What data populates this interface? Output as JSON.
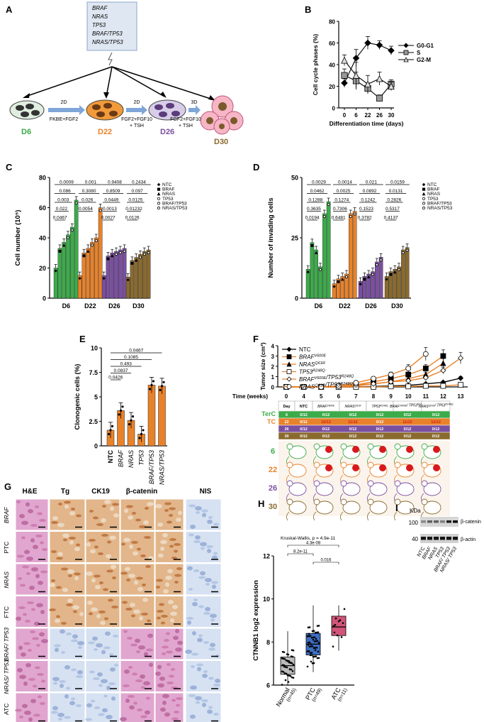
{
  "panels": {
    "A": "A",
    "B": "B",
    "C": "C",
    "D": "D",
    "E": "E",
    "F": "F",
    "G": "G",
    "H": "H",
    "I": "I"
  },
  "panel_a": {
    "genes": [
      "BRAF",
      "NRAS",
      "TP53",
      "BRAF/TP53",
      "NRAS/TP53"
    ],
    "stages": [
      {
        "day": "D6",
        "color": "#3cab4a"
      },
      {
        "day": "D22",
        "color": "#e8822a"
      },
      {
        "day": "D26",
        "color": "#7a4fa0"
      },
      {
        "day": "D30",
        "color": "#8a6a2e"
      }
    ],
    "steps": [
      {
        "top": "2D",
        "bottom": "FKBE+FGF2",
        "bottom2": ""
      },
      {
        "top": "2D",
        "bottom": "FGF2+FGF10",
        "bottom2": "+ TSH"
      },
      {
        "top": "3D",
        "bottom": "FGF2+FGF10",
        "bottom2": "+ TSH"
      }
    ]
  },
  "panel_c_legend": [
    "NTC",
    "BRAF",
    "NRAS",
    "TP53",
    "BRAF/TP53",
    "NRAS/TP53"
  ],
  "panel_d_legend": [
    "NTC",
    "BRAF",
    "NRAS",
    "TP53",
    "BRAF/TP53",
    "NRAS/TP53"
  ],
  "panel_c_pvalues": {
    "D6": [
      "0.0009",
      "0.086",
      "0.003",
      "0.022",
      "0.0467"
    ],
    "D22": [
      "0.001",
      "0.3080",
      "0.026",
      "0.0054"
    ],
    "D26": [
      "0.9408",
      "0.8509",
      "0.0449",
      "0.0013",
      "0.0027"
    ],
    "D30": [
      "0.2434",
      "0.097",
      "0.0125",
      "0.01232",
      "0.0126"
    ]
  },
  "panel_d_pvalues": {
    "D6": [
      "0.0029",
      "0.0462",
      "0.1288",
      "0.3635",
      "0.0194"
    ],
    "D22": [
      "0.0014",
      "0.0025",
      "0.1274",
      "0.7306",
      "0.6481"
    ],
    "D26": [
      "0.021",
      "0.0892",
      "0.1242",
      "0.1523",
      "0.3782"
    ],
    "D30": [
      "0.0159",
      "0.0131",
      "0.2826",
      "0.5317",
      "0.4137"
    ]
  },
  "panel_e_pvalues": [
    "0.0467",
    "0.1085",
    "0.493",
    "0.0837",
    "0.0426"
  ],
  "panel_f_legend": [
    "NTC",
    "BRAFV600E",
    "NRASQ61R",
    "TP53R248Q",
    "BRAFV600E/TP53R248Q",
    "NRASQ61R/TP53R248Q"
  ],
  "panel_f_table": {
    "header": [
      "Day",
      "NTC",
      "BRAFV600E",
      "NRASQ61R",
      "TP53R248Q",
      "BRAFV600E/ TP53R248Q",
      "NRASQ61R/ TP53R248Q"
    ],
    "rows": [
      {
        "day": "6",
        "color": "#3cab4a",
        "cells": [
          "0/12",
          "0/12",
          "0/12",
          "0/12",
          "0/12",
          "0/12"
        ]
      },
      {
        "day": "22",
        "color": "#e8822a",
        "cells": [
          "0/12",
          "10/12",
          "11/12",
          "0/12",
          "11/12",
          "12/12"
        ]
      },
      {
        "day": "26",
        "color": "#7a4fa0",
        "cells": [
          "0/12",
          "0/12",
          "0/12",
          "0/12",
          "0/12",
          "0/12"
        ]
      },
      {
        "day": "30",
        "color": "#8a6a2e",
        "cells": [
          "0/12",
          "0/12",
          "0/12",
          "0/12",
          "0/12",
          "0/12"
        ]
      }
    ],
    "terc": "TerC",
    "tc": "TC",
    "mice_days": [
      "6",
      "22",
      "26",
      "30"
    ]
  },
  "panel_g": {
    "columns": [
      "H&E",
      "Tg",
      "CK19",
      "β-catenin",
      "NIS"
    ],
    "rows": [
      "BRAF",
      "PTC",
      "NRAS",
      "FTC",
      "BRAF/ TP53",
      "NRAS/ TP53",
      "ATC"
    ]
  },
  "panel_h": {
    "title": "Kruskal-Wallis, p = 4.9e-11",
    "brackets": [
      "4.3e-08",
      "8.2e-11",
      "0.016"
    ]
  },
  "panel_i": {
    "kda": "KDa",
    "markers": [
      "100",
      "40"
    ],
    "bands": [
      "β-catenin",
      "β-actin"
    ],
    "lanes": [
      "NTC",
      "BRAF",
      "NRAS",
      "TP53",
      "BRAF/ TP53",
      "NRAS/ TP53"
    ]
  },
  "chart_data": [
    {
      "type": "line",
      "id": "B",
      "xlabel": "Differentiation time (days)",
      "ylabel": "Cell cycle phases (%)",
      "x": [
        0,
        6,
        22,
        26,
        30
      ],
      "xticks": [
        "0",
        "6",
        "22",
        "26",
        "30"
      ],
      "ylim": [
        0,
        80
      ],
      "yticks": [
        0,
        20,
        40,
        60,
        80
      ],
      "series": [
        {
          "name": "G0-G1",
          "marker": "diamond",
          "values": [
            23,
            46,
            60,
            58,
            53
          ],
          "errors": [
            4,
            8,
            6,
            4,
            4
          ]
        },
        {
          "name": "S",
          "marker": "square",
          "values": [
            30,
            25,
            18,
            9,
            22
          ],
          "errors": [
            6,
            8,
            5,
            3,
            4
          ]
        },
        {
          "name": "G2-M",
          "marker": "triangle",
          "values": [
            44,
            30,
            22,
            27,
            20
          ],
          "errors": [
            5,
            12,
            8,
            6,
            4
          ]
        }
      ]
    },
    {
      "type": "bar",
      "id": "C",
      "ylabel": "Cell number (10⁵)",
      "categories": [
        "D6",
        "D22",
        "D26",
        "D30"
      ],
      "ylim": [
        0,
        80
      ],
      "yticks": [
        0,
        20,
        40,
        60,
        80
      ],
      "series": [
        {
          "name": "NTC",
          "values": [
            20,
            15,
            15,
            14
          ]
        },
        {
          "name": "BRAF",
          "values": [
            33,
            30,
            28,
            25
          ]
        },
        {
          "name": "NRAS",
          "values": [
            37,
            33,
            30,
            27
          ]
        },
        {
          "name": "TP53",
          "values": [
            42,
            37,
            31,
            29
          ]
        },
        {
          "name": "BRAF/TP53",
          "values": [
            47,
            40,
            32,
            31
          ]
        },
        {
          "name": "NRAS/TP53",
          "values": [
            65,
            60,
            33,
            32
          ]
        }
      ]
    },
    {
      "type": "bar",
      "id": "D",
      "ylabel": "Number of invading cells",
      "categories": [
        "D6",
        "D22",
        "D26",
        "D30"
      ],
      "ylim": [
        0,
        50
      ],
      "yticks": [
        0,
        25,
        50
      ],
      "series": [
        {
          "name": "NTC",
          "values": [
            12,
            6,
            7,
            9
          ]
        },
        {
          "name": "BRAF",
          "values": [
            23,
            8,
            9,
            11
          ]
        },
        {
          "name": "NRAS",
          "values": [
            20,
            9,
            10,
            12
          ]
        },
        {
          "name": "TP53",
          "values": [
            13,
            10,
            11,
            13
          ]
        },
        {
          "name": "BRAF/TP53",
          "values": [
            35,
            35,
            15,
            20
          ]
        },
        {
          "name": "NRAS/TP53",
          "values": [
            40,
            36,
            17,
            21
          ]
        }
      ]
    },
    {
      "type": "bar",
      "id": "E",
      "ylabel": "Clonogenic cells (%)",
      "categories": [
        "NTC",
        "BRAF",
        "NRAS",
        "TP53",
        "BRAF/TP53",
        "NRAS/TP53"
      ],
      "ylim": [
        0,
        10
      ],
      "yticks": [
        0,
        2.5,
        5,
        7.5,
        10
      ],
      "values": [
        1.6,
        3.6,
        2.6,
        1.2,
        6.2,
        6.1
      ]
    },
    {
      "type": "line",
      "id": "F",
      "xlabel": "Time (weeks)",
      "ylabel": "Tumor size (cm³)",
      "x": [
        0,
        4,
        5,
        6,
        7,
        8,
        9,
        10,
        11,
        12,
        13
      ],
      "ylim": [
        0,
        4
      ],
      "yticks": [
        0,
        1,
        2,
        3,
        4
      ],
      "series": [
        {
          "name": "NTC",
          "values": [
            0,
            0,
            0,
            0,
            0,
            0.05,
            0.1,
            0.15,
            0.3,
            0.45,
            0.85
          ]
        },
        {
          "name": "BRAFV600E",
          "values": [
            0,
            0,
            0,
            0.05,
            0.2,
            0.5,
            0.8,
            1.2,
            1.8,
            3.0,
            null
          ]
        },
        {
          "name": "NRASQ61R",
          "values": [
            0,
            0,
            0,
            0,
            0.1,
            0.3,
            0.5,
            0.8,
            1.2,
            2.3,
            null
          ]
        },
        {
          "name": "TP53R248Q",
          "values": [
            0,
            0,
            0,
            0,
            0,
            0,
            0.05,
            0.05,
            0.1,
            0.1,
            0.2
          ]
        },
        {
          "name": "BRAFV600E/TP53R248Q",
          "values": [
            0,
            0,
            0,
            0.1,
            0.2,
            0.3,
            0.5,
            0.6,
            0.9,
            1.6,
            2.8
          ]
        },
        {
          "name": "NRASQ61R/TP53R248Q",
          "values": [
            0,
            0,
            0,
            0.1,
            0.4,
            0.8,
            1.2,
            1.8,
            3.2,
            null,
            null
          ]
        }
      ]
    },
    {
      "type": "scatter",
      "id": "H",
      "ylabel": "CTNNB1 log2 expression",
      "categories": [
        "Normal",
        "PTC",
        "ATC"
      ],
      "ns": [
        "(n=45)",
        "(n=49)",
        "(n=11)"
      ],
      "ylim": [
        6,
        12
      ],
      "yticks": [
        6,
        8,
        10,
        12
      ],
      "medians": [
        6.9,
        7.9,
        8.7
      ],
      "q1": [
        6.5,
        7.4,
        8.3
      ],
      "q3": [
        7.3,
        8.4,
        9.2
      ],
      "whisker_low": [
        6.0,
        6.6,
        7.6
      ],
      "whisker_high": [
        8.5,
        9.7,
        9.7
      ],
      "box_colors": [
        "#bbbbbb",
        "#3d6fc2",
        "#d1557a"
      ]
    }
  ]
}
